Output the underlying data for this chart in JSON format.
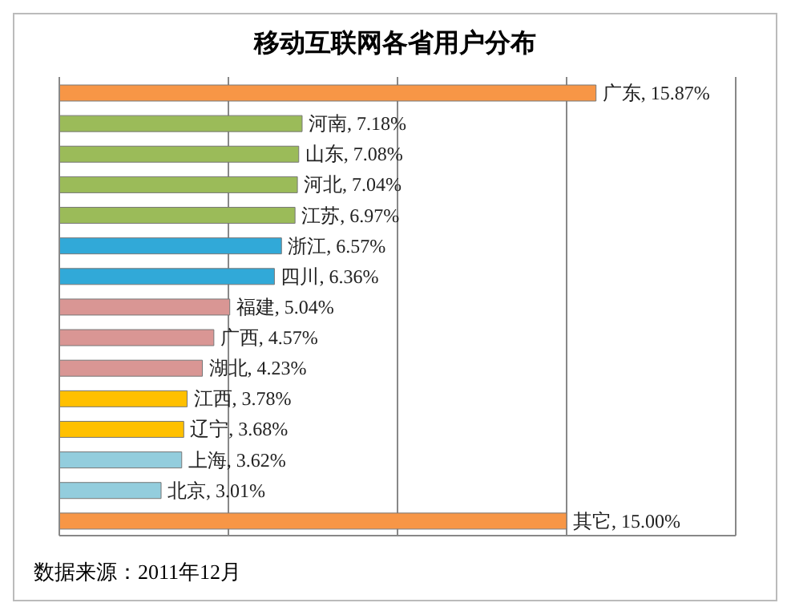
{
  "chart_data": {
    "type": "bar",
    "orientation": "horizontal",
    "title": "移动互联网各省用户分布",
    "categories": [
      "广东",
      "河南",
      "山东",
      "河北",
      "江苏",
      "浙江",
      "四川",
      "福建",
      "广西",
      "湖北",
      "江西",
      "辽宁",
      "上海",
      "北京",
      "其它"
    ],
    "values": [
      15.87,
      7.18,
      7.08,
      7.04,
      6.97,
      6.57,
      6.36,
      5.04,
      4.57,
      4.23,
      3.78,
      3.68,
      3.62,
      3.01,
      15.0
    ],
    "value_labels": [
      ", 15.87%",
      ", 7.18%",
      ", 7.08%",
      ", 7.04%",
      ", 6.97%",
      ", 6.57%",
      ", 6.36%",
      ", 5.04%",
      ", 4.57%",
      ", 4.23%",
      ", 3.78%",
      ", 3.68%",
      ", 3.62%",
      ", 3.01%",
      ", 15.00%"
    ],
    "colors": [
      "#f79646",
      "#9bbb59",
      "#9bbb59",
      "#9bbb59",
      "#9bbb59",
      "#31a9d8",
      "#31a9d8",
      "#d99694",
      "#d99694",
      "#d99694",
      "#ffc000",
      "#ffc000",
      "#93cddd",
      "#93cddd",
      "#f79646"
    ],
    "xlim": [
      0,
      20
    ],
    "grid": "x",
    "tick_labels": false,
    "annotations": [
      "数据来源：2011年12月"
    ]
  }
}
